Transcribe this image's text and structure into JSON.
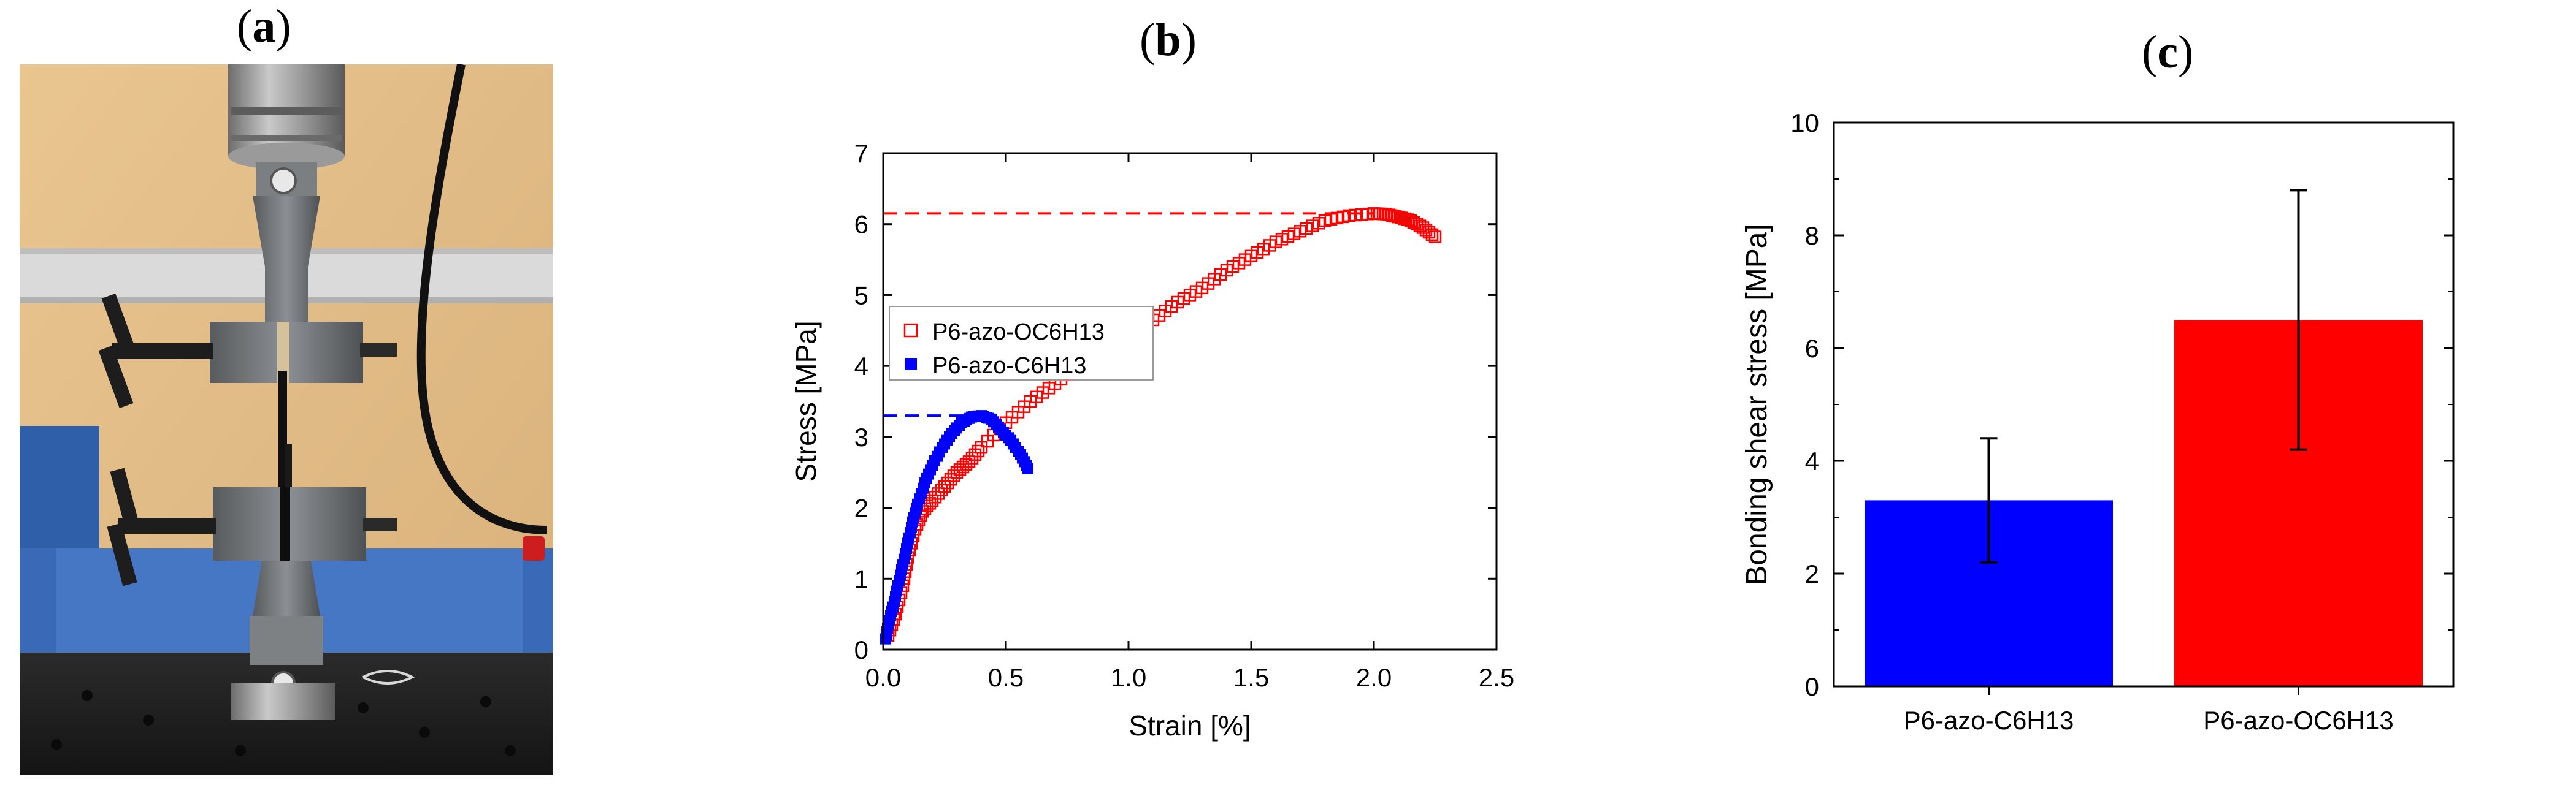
{
  "panels": {
    "a": {
      "label": "a"
    },
    "b": {
      "label": "b"
    },
    "c": {
      "label": "c"
    }
  },
  "photo": {
    "description_icon": "tensile-test-machine-photo"
  },
  "chart_data": [
    {
      "id": "b",
      "type": "scatter",
      "title": "",
      "xlabel": "Strain [%]",
      "ylabel": "Stress [MPa]",
      "xlim": [
        0,
        2.5
      ],
      "ylim": [
        0,
        7
      ],
      "xticks": [
        "0.0",
        "0.5",
        "1.0",
        "1.5",
        "2.0",
        "2.5"
      ],
      "yticks": [
        "0",
        "1",
        "2",
        "3",
        "4",
        "5",
        "6",
        "7"
      ],
      "legend": "upper-left",
      "series": [
        {
          "name": "P6-azo-OC6H13",
          "marker": "open-square",
          "color": "#ff0000",
          "points": [
            [
              0.02,
              0.2
            ],
            [
              0.05,
              0.5
            ],
            [
              0.08,
              0.9
            ],
            [
              0.1,
              1.3
            ],
            [
              0.13,
              1.7
            ],
            [
              0.16,
              1.95
            ],
            [
              0.2,
              2.1
            ],
            [
              0.25,
              2.3
            ],
            [
              0.3,
              2.5
            ],
            [
              0.35,
              2.65
            ],
            [
              0.4,
              2.85
            ],
            [
              0.5,
              3.2
            ],
            [
              0.6,
              3.5
            ],
            [
              0.7,
              3.75
            ],
            [
              0.8,
              4.0
            ],
            [
              0.9,
              4.2
            ],
            [
              1.0,
              4.4
            ],
            [
              1.1,
              4.65
            ],
            [
              1.2,
              4.9
            ],
            [
              1.3,
              5.1
            ],
            [
              1.4,
              5.35
            ],
            [
              1.5,
              5.55
            ],
            [
              1.6,
              5.75
            ],
            [
              1.7,
              5.9
            ],
            [
              1.8,
              6.05
            ],
            [
              1.9,
              6.12
            ],
            [
              2.0,
              6.15
            ],
            [
              2.05,
              6.14
            ],
            [
              2.1,
              6.1
            ],
            [
              2.15,
              6.05
            ],
            [
              2.2,
              5.95
            ],
            [
              2.25,
              5.82
            ]
          ],
          "max_line": 6.15
        },
        {
          "name": "P6-azo-C6H13",
          "marker": "filled-square",
          "color": "#0000ff",
          "points": [
            [
              0.01,
              0.15
            ],
            [
              0.02,
              0.35
            ],
            [
              0.04,
              0.6
            ],
            [
              0.06,
              0.9
            ],
            [
              0.08,
              1.2
            ],
            [
              0.1,
              1.5
            ],
            [
              0.12,
              1.8
            ],
            [
              0.14,
              2.05
            ],
            [
              0.17,
              2.35
            ],
            [
              0.2,
              2.6
            ],
            [
              0.24,
              2.85
            ],
            [
              0.28,
              3.05
            ],
            [
              0.32,
              3.2
            ],
            [
              0.36,
              3.28
            ],
            [
              0.4,
              3.3
            ],
            [
              0.44,
              3.25
            ],
            [
              0.48,
              3.1
            ],
            [
              0.52,
              2.95
            ],
            [
              0.56,
              2.75
            ],
            [
              0.59,
              2.55
            ]
          ],
          "max_line": 3.3
        }
      ]
    },
    {
      "id": "c",
      "type": "bar",
      "title": "",
      "xlabel": "",
      "ylabel": "Bonding shear stress [MPa]",
      "ylim": [
        0,
        10
      ],
      "yticks": [
        "0",
        "2",
        "4",
        "6",
        "8",
        "10"
      ],
      "categories": [
        "P6-azo-C6H13",
        "P6-azo-OC6H13"
      ],
      "values": [
        3.3,
        6.5
      ],
      "errors_low": [
        2.2,
        4.2
      ],
      "errors_high": [
        4.4,
        8.8
      ],
      "colors": [
        "#0000ff",
        "#ff0000"
      ]
    }
  ]
}
